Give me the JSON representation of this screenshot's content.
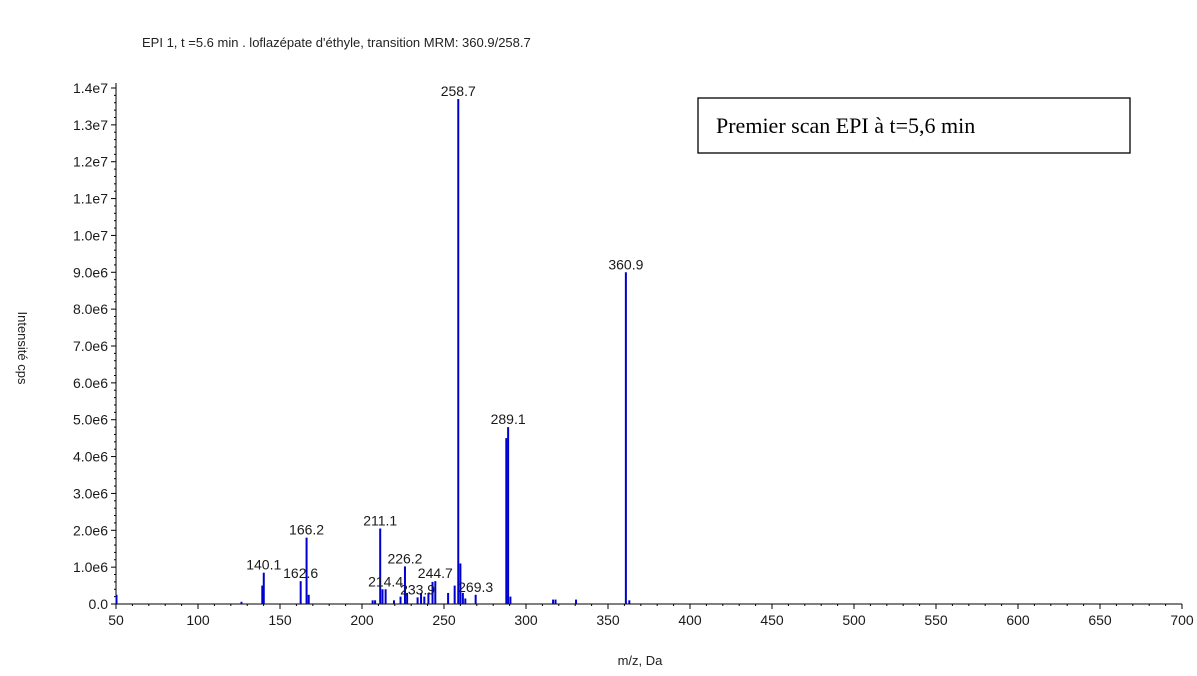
{
  "chart_data": {
    "type": "bar",
    "title": "EPI 1, t =5.6 min . loflazépate d'éthyle, transition MRM: 360.9/258.7",
    "xlabel": "m/z, Da",
    "ylabel": "Intensité cps",
    "xlim": [
      50,
      700
    ],
    "ylim": [
      0,
      14000000
    ],
    "x_ticks": [
      50,
      100,
      150,
      200,
      250,
      300,
      350,
      400,
      450,
      500,
      550,
      600,
      650,
      700
    ],
    "x_tick_labels": [
      "50",
      "100",
      "150",
      "200",
      "250",
      "300",
      "350",
      "400",
      "450",
      "500",
      "550",
      "600",
      "650",
      "700"
    ],
    "y_ticks": [
      0,
      1000000,
      2000000,
      3000000,
      4000000,
      5000000,
      6000000,
      7000000,
      8000000,
      9000000,
      10000000,
      11000000,
      12000000,
      13000000,
      14000000
    ],
    "y_tick_labels": [
      "0.0",
      "1.0e6",
      "2.0e6",
      "3.0e6",
      "4.0e6",
      "5.0e6",
      "6.0e6",
      "7.0e6",
      "8.0e6",
      "9.0e6",
      "1.0e7",
      "1.1e7",
      "1.2e7",
      "1.3e7",
      "1.4e7"
    ],
    "color": "#0000cc",
    "peaks": [
      {
        "mz": 50.3,
        "intensity": 250000
      },
      {
        "mz": 126.5,
        "intensity": 60000
      },
      {
        "mz": 139.2,
        "intensity": 500000
      },
      {
        "mz": 140.1,
        "intensity": 850000,
        "label": "140.1"
      },
      {
        "mz": 162.6,
        "intensity": 620000,
        "label": "162.6"
      },
      {
        "mz": 166.2,
        "intensity": 1800000,
        "label": "166.2"
      },
      {
        "mz": 167.5,
        "intensity": 250000
      },
      {
        "mz": 206.5,
        "intensity": 100000
      },
      {
        "mz": 208.0,
        "intensity": 100000
      },
      {
        "mz": 211.1,
        "intensity": 2050000,
        "label": "211.1"
      },
      {
        "mz": 212.5,
        "intensity": 400000
      },
      {
        "mz": 214.4,
        "intensity": 400000,
        "label": "214.4"
      },
      {
        "mz": 219.5,
        "intensity": 100000
      },
      {
        "mz": 223.5,
        "intensity": 200000
      },
      {
        "mz": 226.2,
        "intensity": 1020000,
        "label": "226.2"
      },
      {
        "mz": 227.5,
        "intensity": 300000
      },
      {
        "mz": 233.9,
        "intensity": 180000,
        "label": "233.9"
      },
      {
        "mz": 236.0,
        "intensity": 300000
      },
      {
        "mz": 238.0,
        "intensity": 200000
      },
      {
        "mz": 240.5,
        "intensity": 300000
      },
      {
        "mz": 243.0,
        "intensity": 600000
      },
      {
        "mz": 244.7,
        "intensity": 620000,
        "label": "244.7"
      },
      {
        "mz": 252.5,
        "intensity": 300000
      },
      {
        "mz": 256.5,
        "intensity": 500000
      },
      {
        "mz": 258.7,
        "intensity": 13700000,
        "label": "258.7"
      },
      {
        "mz": 260.0,
        "intensity": 1100000
      },
      {
        "mz": 261.5,
        "intensity": 300000
      },
      {
        "mz": 263.0,
        "intensity": 150000
      },
      {
        "mz": 269.3,
        "intensity": 250000,
        "label": "269.3"
      },
      {
        "mz": 288.0,
        "intensity": 4500000
      },
      {
        "mz": 289.1,
        "intensity": 4800000,
        "label": "289.1"
      },
      {
        "mz": 290.5,
        "intensity": 200000
      },
      {
        "mz": 316.5,
        "intensity": 120000
      },
      {
        "mz": 318.0,
        "intensity": 120000
      },
      {
        "mz": 330.5,
        "intensity": 120000
      },
      {
        "mz": 360.9,
        "intensity": 9000000,
        "label": "360.9"
      },
      {
        "mz": 363.0,
        "intensity": 100000
      }
    ],
    "annotations": [
      {
        "text": "Premier scan EPI à t=5,6 min",
        "position": "top-right",
        "boxed": true
      }
    ]
  }
}
